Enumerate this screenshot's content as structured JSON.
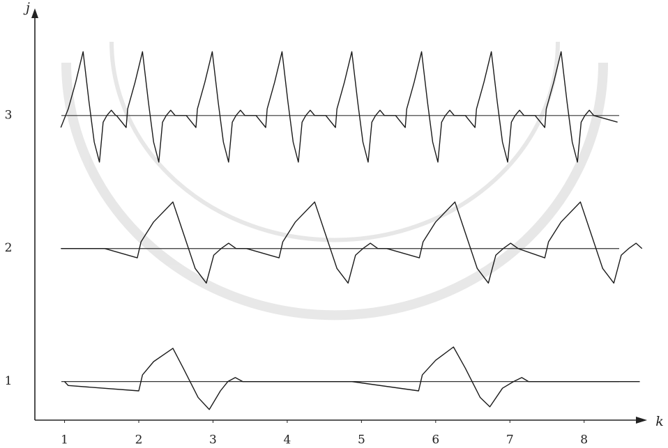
{
  "chart_data": {
    "type": "line",
    "x_label": "k",
    "y_label": "j",
    "xlim": [
      0.6,
      8.82
    ],
    "ylim": [
      0.71,
      3.79
    ],
    "xticks": [
      1,
      2,
      3,
      4,
      5,
      6,
      7,
      8
    ],
    "yticks": [
      1,
      2,
      3
    ],
    "grid": true,
    "series": [
      {
        "color": "#1a1a1a",
        "x": [
          1.0,
          1.05,
          2.0,
          2.05,
          2.2,
          2.46,
          2.6,
          2.8,
          2.95,
          3.1,
          3.2,
          3.3,
          3.4,
          4.87,
          5.77,
          5.82,
          6.0,
          6.24,
          6.4,
          6.6,
          6.73,
          6.9,
          7.05,
          7.16,
          7.25,
          8.75
        ],
        "values": [
          1.0,
          0.97,
          0.93,
          1.05,
          1.15,
          1.25,
          1.1,
          0.88,
          0.79,
          0.93,
          1.0,
          1.03,
          1.0,
          1.0,
          0.93,
          1.05,
          1.16,
          1.26,
          1.1,
          0.88,
          0.81,
          0.95,
          1.0,
          1.03,
          1.0,
          1.0
        ]
      },
      {
        "color": "#1a1a1a",
        "x": [
          0.95,
          1.54,
          1.98,
          2.03,
          2.2,
          2.46,
          2.61,
          2.76,
          2.91,
          3.01,
          3.11,
          3.21,
          3.31,
          3.45,
          3.89,
          3.94,
          4.11,
          4.37,
          4.52,
          4.67,
          4.82,
          4.92,
          5.02,
          5.12,
          5.22,
          5.34,
          5.78,
          5.83,
          6.0,
          6.26,
          6.41,
          6.56,
          6.71,
          6.81,
          6.91,
          7.01,
          7.11,
          7.47,
          7.52,
          7.69,
          7.95,
          8.1,
          8.25,
          8.4,
          8.5,
          8.6,
          8.7,
          8.78
        ],
        "values": [
          2.0,
          2.0,
          1.93,
          2.05,
          2.2,
          2.35,
          2.1,
          1.85,
          1.74,
          1.95,
          2.0,
          2.04,
          2.0,
          2.0,
          1.93,
          2.05,
          2.2,
          2.35,
          2.1,
          1.85,
          1.74,
          1.95,
          2.0,
          2.04,
          2.0,
          2.0,
          1.93,
          2.05,
          2.2,
          2.35,
          2.1,
          1.85,
          1.74,
          1.95,
          2.0,
          2.04,
          2.0,
          1.93,
          2.05,
          2.2,
          2.35,
          2.1,
          1.85,
          1.74,
          1.95,
          2.0,
          2.04,
          2.0
        ]
      },
      {
        "color": "#1a1a1a",
        "x": [
          0.95,
          1.05,
          1.15,
          1.25,
          1.33,
          1.4,
          1.47,
          1.52,
          1.57,
          1.63,
          1.69,
          1.7,
          1.83,
          1.85,
          1.95,
          2.05,
          2.13,
          2.2,
          2.27,
          2.32,
          2.37,
          2.43,
          2.49,
          2.64,
          2.77,
          2.79,
          2.89,
          2.99,
          3.07,
          3.14,
          3.21,
          3.26,
          3.31,
          3.37,
          3.43,
          3.58,
          3.71,
          3.73,
          3.83,
          3.93,
          4.01,
          4.08,
          4.15,
          4.2,
          4.25,
          4.31,
          4.37,
          4.52,
          4.65,
          4.67,
          4.77,
          4.87,
          4.95,
          5.02,
          5.09,
          5.14,
          5.19,
          5.25,
          5.31,
          5.46,
          5.59,
          5.61,
          5.71,
          5.81,
          5.89,
          5.96,
          6.03,
          6.08,
          6.13,
          6.19,
          6.25,
          6.4,
          6.53,
          6.55,
          6.65,
          6.75,
          6.83,
          6.9,
          6.97,
          7.02,
          7.07,
          7.13,
          7.19,
          7.34,
          7.47,
          7.49,
          7.59,
          7.69,
          7.77,
          7.84,
          7.91,
          7.96,
          8.01,
          8.07,
          8.13,
          8.45
        ],
        "values": [
          2.91,
          3.05,
          3.25,
          3.48,
          3.1,
          2.8,
          2.65,
          2.95,
          3.0,
          3.04,
          3.0,
          3.0,
          2.91,
          3.05,
          3.25,
          3.48,
          3.1,
          2.8,
          2.65,
          2.95,
          3.0,
          3.04,
          3.0,
          3.0,
          2.91,
          3.05,
          3.25,
          3.48,
          3.1,
          2.8,
          2.65,
          2.95,
          3.0,
          3.04,
          3.0,
          3.0,
          2.91,
          3.05,
          3.25,
          3.48,
          3.1,
          2.8,
          2.65,
          2.95,
          3.0,
          3.04,
          3.0,
          3.0,
          2.91,
          3.05,
          3.25,
          3.48,
          3.1,
          2.8,
          2.65,
          2.95,
          3.0,
          3.04,
          3.0,
          3.0,
          2.91,
          3.05,
          3.25,
          3.48,
          3.1,
          2.8,
          2.65,
          2.95,
          3.0,
          3.04,
          3.0,
          3.0,
          2.91,
          3.05,
          3.25,
          3.48,
          3.1,
          2.8,
          2.65,
          2.95,
          3.0,
          3.04,
          3.0,
          3.0,
          2.91,
          3.05,
          3.25,
          3.48,
          3.1,
          2.8,
          2.65,
          2.95,
          3.0,
          3.04,
          3.0,
          2.95
        ]
      }
    ]
  }
}
